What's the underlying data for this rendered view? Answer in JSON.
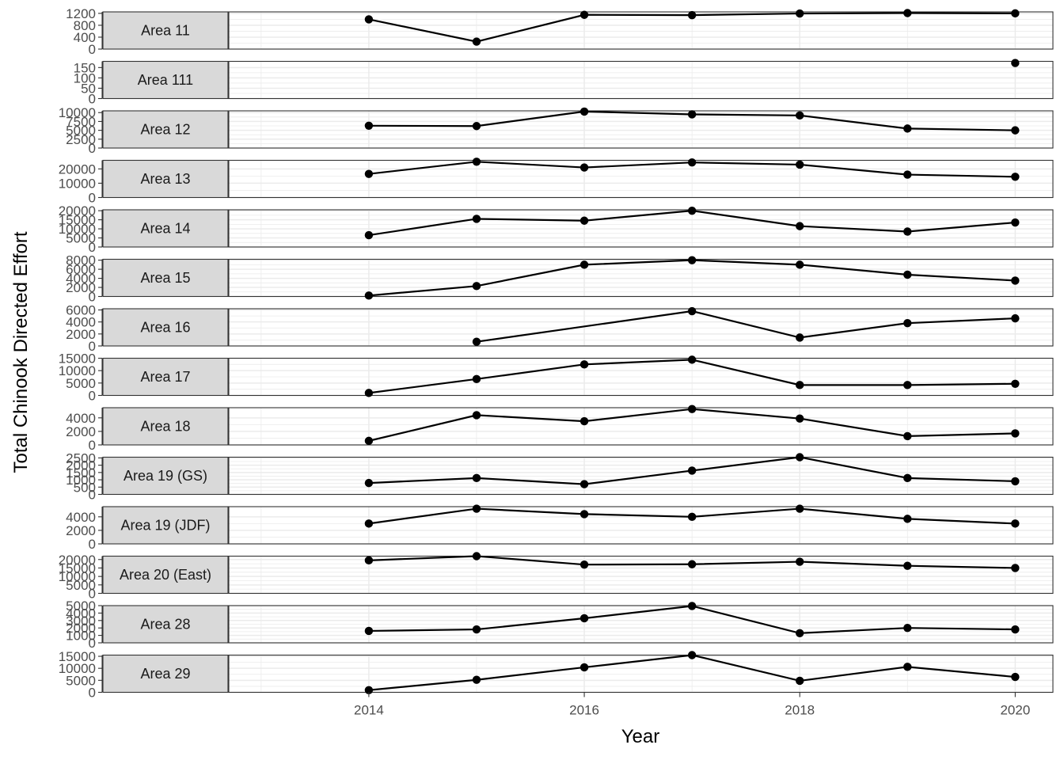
{
  "chart_data": {
    "type": "line",
    "layout": "faceted small multiples, strip label on left of each panel, shared x axis",
    "xlabel": "Year",
    "ylabel": "Total Chinook Directed Effort",
    "x_ticks": [
      2014,
      2016,
      2018,
      2020
    ],
    "xlim": [
      2012.7,
      2020.35
    ],
    "grid": true,
    "colors": {
      "line": "#000000",
      "point": "#000000",
      "strip_fill": "#d9d9d9",
      "panel_border": "#333333",
      "grid": "#ebebeb"
    },
    "panels": [
      {
        "label": "Area 11",
        "ylim": [
          0,
          1250
        ],
        "y_ticks": [
          0,
          400,
          800,
          1200
        ],
        "x": [
          2014,
          2015,
          2016,
          2017,
          2018,
          2019,
          2020
        ],
        "y": [
          1000,
          250,
          1150,
          1140,
          1195,
          1210,
          1200
        ]
      },
      {
        "label": "Area 111",
        "ylim": [
          0,
          180
        ],
        "y_ticks": [
          0,
          50,
          100,
          150
        ],
        "x": [
          2020
        ],
        "y": [
          172
        ]
      },
      {
        "label": "Area 12",
        "ylim": [
          0,
          10500
        ],
        "y_ticks": [
          0,
          2500,
          5000,
          7500,
          10000
        ],
        "x": [
          2014,
          2015,
          2016,
          2017,
          2018,
          2019,
          2020
        ],
        "y": [
          6300,
          6200,
          10300,
          9500,
          9200,
          5500,
          5000
        ]
      },
      {
        "label": "Area 13",
        "ylim": [
          0,
          26000
        ],
        "y_ticks": [
          0,
          10000,
          20000
        ],
        "x": [
          2014,
          2015,
          2016,
          2017,
          2018,
          2019,
          2020
        ],
        "y": [
          16500,
          25000,
          21000,
          24500,
          23000,
          16000,
          14500
        ]
      },
      {
        "label": "Area 14",
        "ylim": [
          0,
          20500
        ],
        "y_ticks": [
          0,
          5000,
          10000,
          15000,
          20000
        ],
        "x": [
          2014,
          2015,
          2016,
          2017,
          2018,
          2019,
          2020
        ],
        "y": [
          6500,
          15500,
          14500,
          20000,
          11500,
          8500,
          13500
        ]
      },
      {
        "label": "Area 15",
        "ylim": [
          0,
          8200
        ],
        "y_ticks": [
          0,
          2000,
          4000,
          6000,
          8000
        ],
        "x": [
          2014,
          2015,
          2016,
          2017,
          2018,
          2019,
          2020
        ],
        "y": [
          200,
          2300,
          7000,
          8000,
          7000,
          4800,
          3500
        ]
      },
      {
        "label": "Area 16",
        "ylim": [
          0,
          6200
        ],
        "y_ticks": [
          0,
          2000,
          4000,
          6000
        ],
        "x": [
          2015,
          2017,
          2018,
          2019,
          2020
        ],
        "y": [
          700,
          5800,
          1400,
          3800,
          4600
        ]
      },
      {
        "label": "Area 17",
        "ylim": [
          0,
          15000
        ],
        "y_ticks": [
          0,
          5000,
          10000,
          15000
        ],
        "x": [
          2014,
          2015,
          2016,
          2017,
          2018,
          2019,
          2020
        ],
        "y": [
          1000,
          6600,
          12500,
          14400,
          4200,
          4200,
          4700
        ]
      },
      {
        "label": "Area 18",
        "ylim": [
          0,
          5500
        ],
        "y_ticks": [
          0,
          2000,
          4000
        ],
        "x": [
          2014,
          2015,
          2016,
          2017,
          2018,
          2019,
          2020
        ],
        "y": [
          600,
          4400,
          3500,
          5300,
          3900,
          1300,
          1700
        ]
      },
      {
        "label": "Area 19 (GS)",
        "ylim": [
          0,
          2550
        ],
        "y_ticks": [
          0,
          500,
          1000,
          1500,
          2000,
          2500
        ],
        "x": [
          2014,
          2015,
          2016,
          2017,
          2018,
          2019,
          2020
        ],
        "y": [
          780,
          1120,
          700,
          1630,
          2550,
          1120,
          900
        ]
      },
      {
        "label": "Area 19 (JDF)",
        "ylim": [
          0,
          5500
        ],
        "y_ticks": [
          0,
          2000,
          4000
        ],
        "x": [
          2014,
          2015,
          2016,
          2017,
          2018,
          2019,
          2020
        ],
        "y": [
          3000,
          5200,
          4400,
          4000,
          5200,
          3700,
          3000
        ]
      },
      {
        "label": "Area 20 (East)",
        "ylim": [
          0,
          22000
        ],
        "y_ticks": [
          0,
          5000,
          10000,
          15000,
          20000
        ],
        "x": [
          2014,
          2015,
          2016,
          2017,
          2018,
          2019,
          2020
        ],
        "y": [
          19500,
          22000,
          17000,
          17200,
          18700,
          16300,
          15000
        ]
      },
      {
        "label": "Area 28",
        "ylim": [
          0,
          5000
        ],
        "y_ticks": [
          0,
          1000,
          2000,
          3000,
          4000,
          5000
        ],
        "x": [
          2014,
          2015,
          2016,
          2017,
          2018,
          2019,
          2020
        ],
        "y": [
          1600,
          1800,
          3300,
          4950,
          1300,
          2000,
          1800
        ]
      },
      {
        "label": "Area 29",
        "ylim": [
          0,
          15500
        ],
        "y_ticks": [
          0,
          5000,
          10000,
          15000
        ],
        "x": [
          2014,
          2015,
          2016,
          2017,
          2018,
          2019,
          2020
        ],
        "y": [
          900,
          5200,
          10400,
          15500,
          4800,
          10600,
          6400
        ]
      }
    ]
  }
}
